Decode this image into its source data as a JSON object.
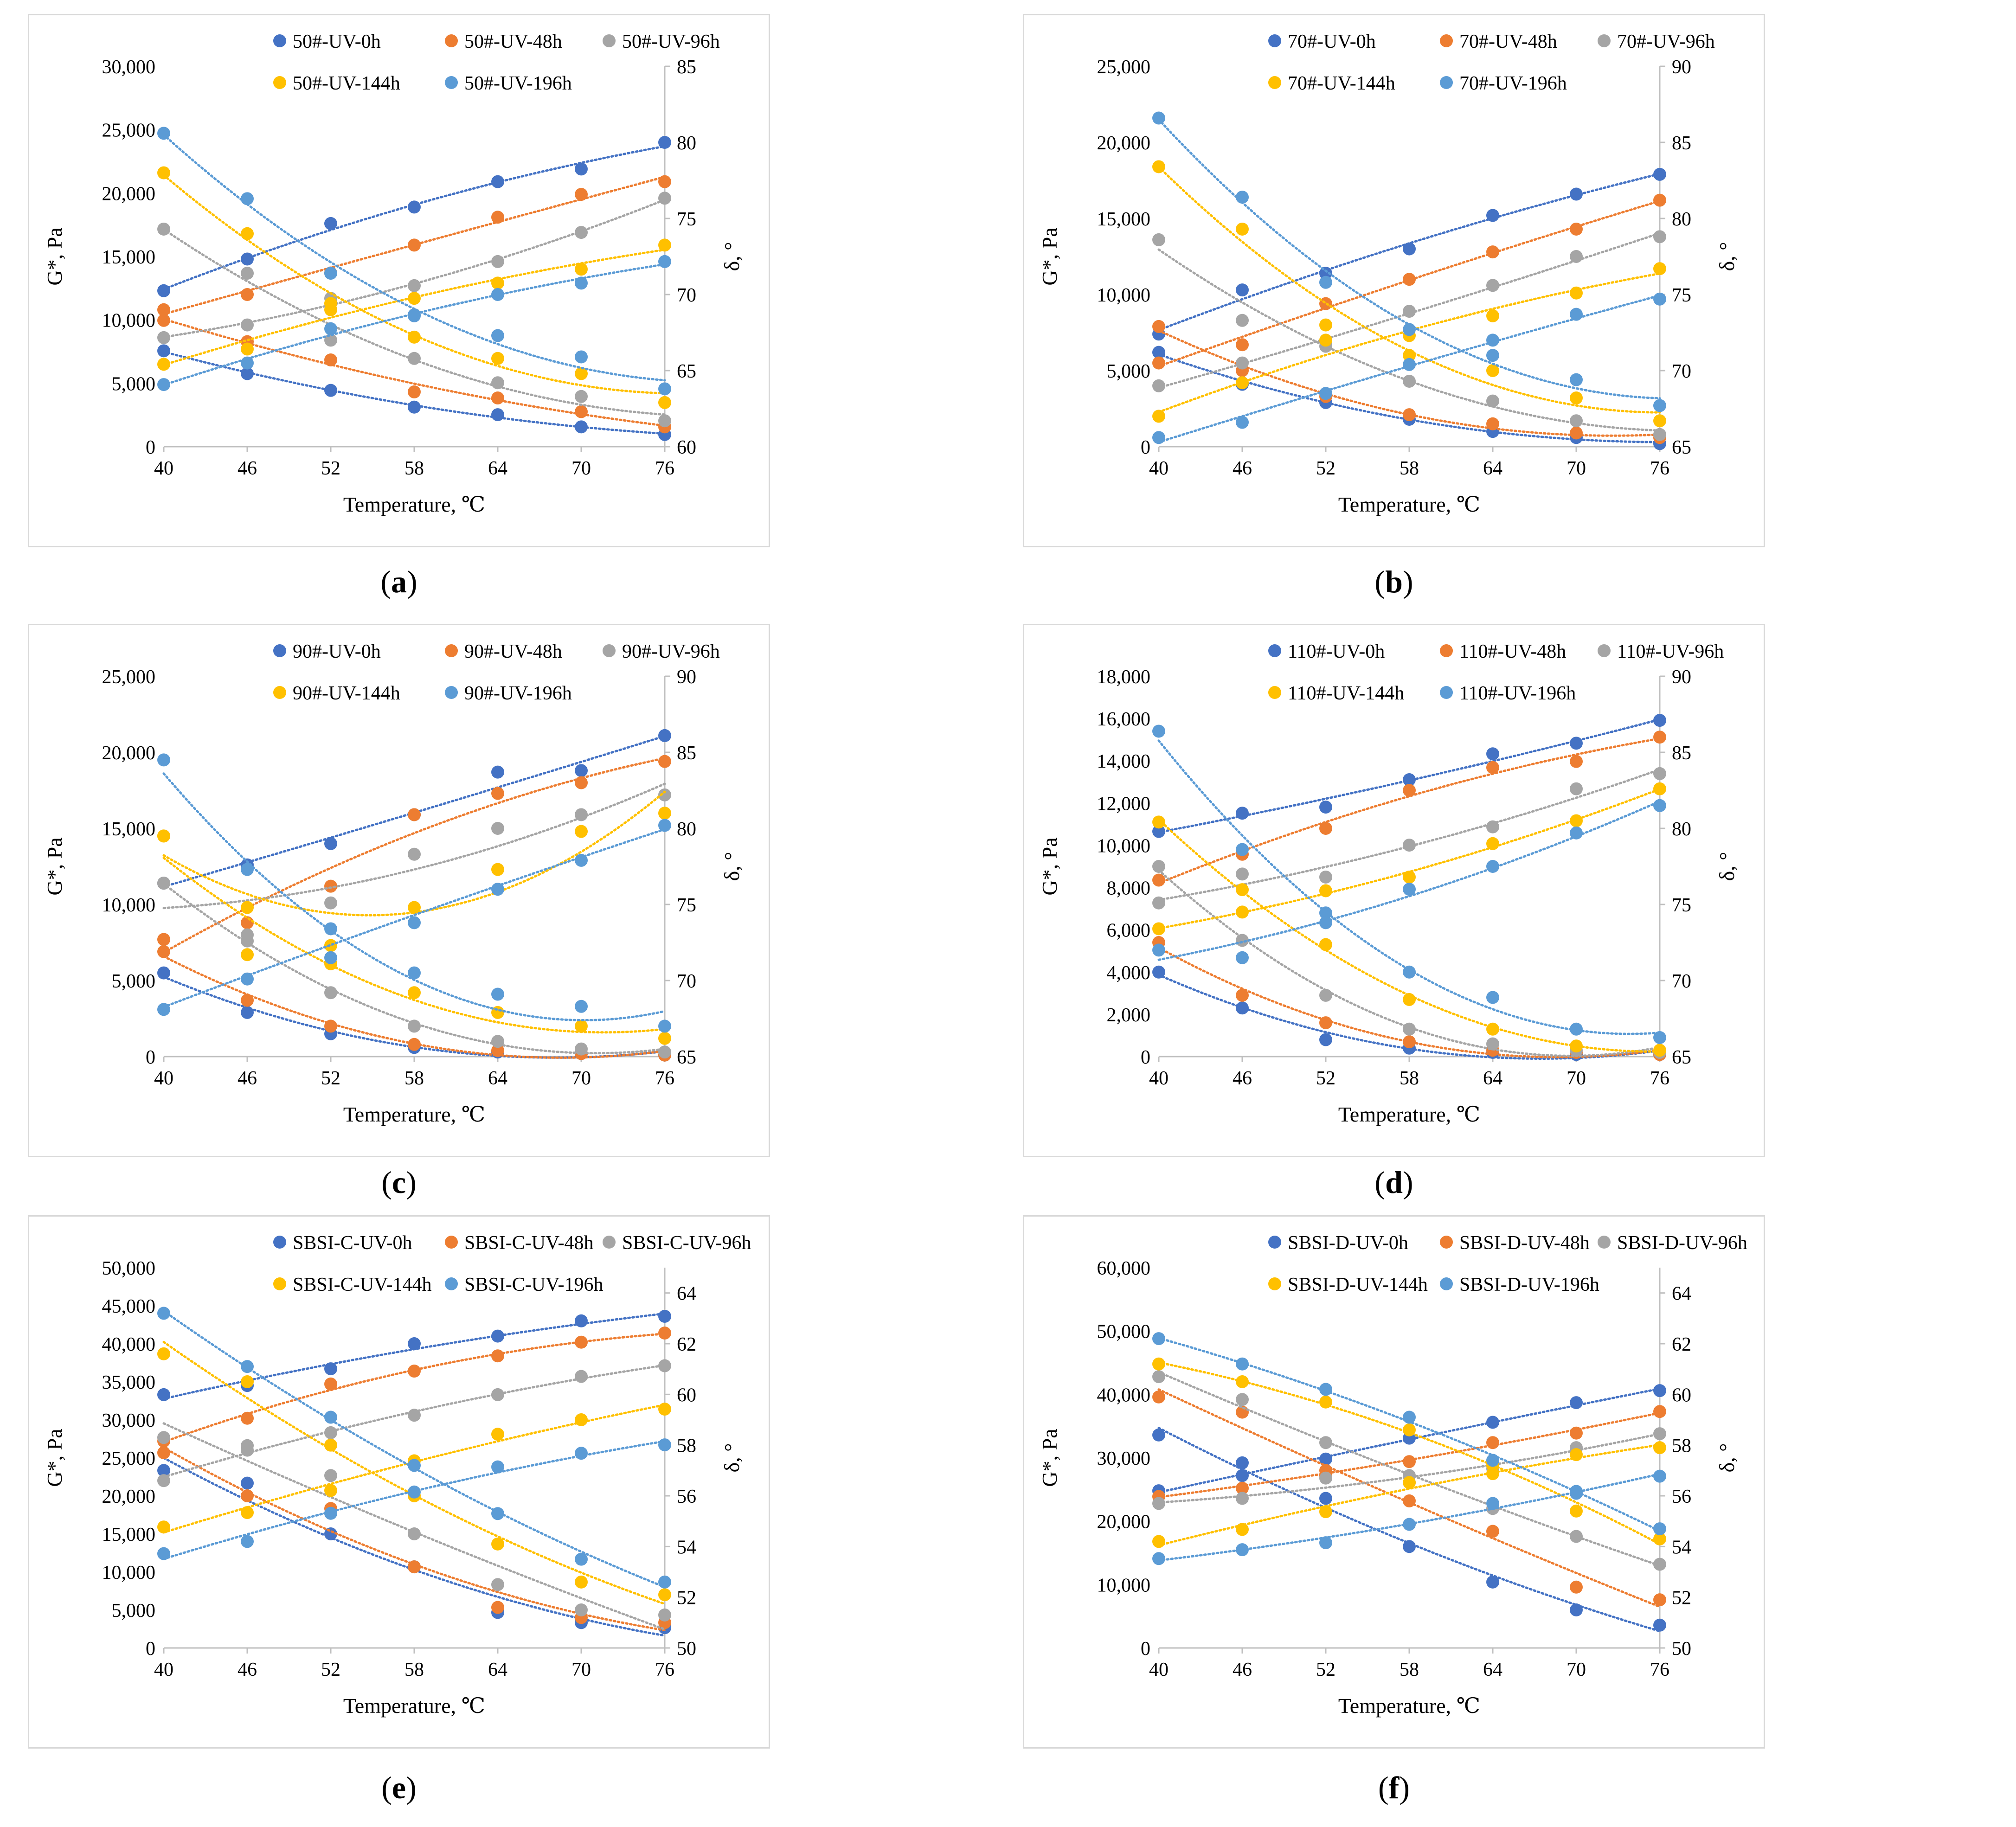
{
  "colors": {
    "UV-0h": "#4472c4",
    "UV-48h": "#ed7d31",
    "UV-96h": "#a5a5a5",
    "UV-144h": "#ffc000",
    "UV-196h": "#5b9bd5"
  },
  "chart_data": [
    {
      "id": "a",
      "type": "scatter",
      "label": "a",
      "x": [
        40,
        46,
        52,
        58,
        64,
        70,
        76
      ],
      "xlabel": "Temperature, ℃",
      "ylabel": "G*, Pa",
      "y2label": "δ, °",
      "ylim": [
        0,
        30000
      ],
      "yticks": [
        0,
        5000,
        10000,
        15000,
        20000,
        25000,
        30000
      ],
      "ytick_labels": [
        "0",
        "5,000",
        "10,000",
        "15,000",
        "20,000",
        "25,000",
        "30,000"
      ],
      "y2lim": [
        60,
        85
      ],
      "y2ticks": [
        60,
        65,
        70,
        75,
        80,
        85
      ],
      "y2tick_labels": [
        "60",
        "65",
        "70",
        "75",
        "80",
        "85"
      ],
      "legend": [
        "50#-UV-0h",
        "50#-UV-48h",
        "50#-UV-96h",
        "50#-UV-144h",
        "50#-UV-196h"
      ],
      "series": [
        {
          "name": "50#-UV-0h",
          "color": "#4472c4",
          "G": [
            12300,
            14800,
            17600,
            18900,
            20900,
            21900,
            24000
          ],
          "delta": [
            66.3,
            64.8,
            63.7,
            62.6,
            62.1,
            61.3,
            60.8
          ]
        },
        {
          "name": "50#-UV-48h",
          "color": "#ed7d31",
          "G": [
            10800,
            12000,
            13700,
            15900,
            18100,
            19900,
            20900
          ],
          "delta": [
            68.3,
            66.9,
            65.7,
            63.6,
            63.2,
            62.3,
            61.3
          ]
        },
        {
          "name": "50#-UV-96h",
          "color": "#a5a5a5",
          "G": [
            8600,
            9600,
            11700,
            12700,
            14600,
            16900,
            19600
          ],
          "delta": [
            74.3,
            71.4,
            67.0,
            65.8,
            64.2,
            63.3,
            61.7
          ]
        },
        {
          "name": "50#-UV-144h",
          "color": "#ffc000",
          "G": [
            6500,
            7700,
            11300,
            11700,
            12900,
            14000,
            15900
          ],
          "delta": [
            78.0,
            74.0,
            69.0,
            67.2,
            65.8,
            64.8,
            62.9
          ]
        },
        {
          "name": "50#-UV-196h",
          "color": "#5b9bd5",
          "G": [
            4900,
            6600,
            9300,
            10400,
            12000,
            12900,
            14600
          ],
          "delta": [
            80.6,
            76.3,
            71.4,
            68.6,
            67.3,
            65.9,
            63.8
          ]
        }
      ]
    },
    {
      "id": "b",
      "type": "scatter",
      "label": "b",
      "x": [
        40,
        46,
        52,
        58,
        64,
        70,
        76
      ],
      "xlabel": "Temperature, ℃",
      "ylabel": "G*, Pa",
      "y2label": "δ, °",
      "ylim": [
        0,
        25000
      ],
      "yticks": [
        0,
        5000,
        10000,
        15000,
        20000,
        25000
      ],
      "ytick_labels": [
        "0",
        "5,000",
        "10,000",
        "15,000",
        "20,000",
        "25,000"
      ],
      "y2lim": [
        65,
        90
      ],
      "y2ticks": [
        65,
        70,
        75,
        80,
        85,
        90
      ],
      "y2tick_labels": [
        "65",
        "70",
        "75",
        "80",
        "85",
        "90"
      ],
      "legend": [
        "70#-UV-0h",
        "70#-UV-48h",
        "70#-UV-96h",
        "70#-UV-144h",
        "70#-UV-196h"
      ],
      "series": [
        {
          "name": "70#-UV-0h",
          "color": "#4472c4",
          "G": [
            7400,
            10300,
            11400,
            13000,
            15200,
            16600,
            17900
          ],
          "delta": [
            71.2,
            69.1,
            67.9,
            66.8,
            66.0,
            65.6,
            65.2
          ]
        },
        {
          "name": "70#-UV-48h",
          "color": "#ed7d31",
          "G": [
            5500,
            6700,
            9400,
            11000,
            12800,
            14300,
            16200
          ],
          "delta": [
            72.9,
            70.0,
            68.3,
            67.1,
            66.5,
            65.9,
            65.6
          ]
        },
        {
          "name": "70#-UV-96h",
          "color": "#a5a5a5",
          "G": [
            4000,
            5500,
            6600,
            8900,
            10600,
            12500,
            13800
          ],
          "delta": [
            78.6,
            73.3,
            71.9,
            69.3,
            68.0,
            66.7,
            65.8
          ]
        },
        {
          "name": "70#-UV-144h",
          "color": "#ffc000",
          "G": [
            2000,
            4200,
            7000,
            7300,
            8600,
            10100,
            11700
          ],
          "delta": [
            83.4,
            79.3,
            73.0,
            71.0,
            70.0,
            68.2,
            66.7
          ]
        },
        {
          "name": "70#-UV-196h",
          "color": "#5b9bd5",
          "G": [
            600,
            1600,
            3500,
            5400,
            7000,
            8700,
            9700
          ],
          "delta": [
            86.6,
            81.4,
            75.8,
            72.7,
            71.0,
            69.4,
            67.7
          ]
        }
      ]
    },
    {
      "id": "c",
      "type": "scatter",
      "label": "c",
      "x": [
        40,
        46,
        52,
        58,
        64,
        70,
        76
      ],
      "xlabel": "Temperature, ℃",
      "ylabel": "G*, Pa",
      "y2label": "δ, °",
      "ylim": [
        0,
        25000
      ],
      "yticks": [
        0,
        5000,
        10000,
        15000,
        20000,
        25000
      ],
      "ytick_labels": [
        "0",
        "5,000",
        "10,000",
        "15,000",
        "20,000",
        "25,000"
      ],
      "y2lim": [
        65,
        90
      ],
      "y2ticks": [
        65,
        70,
        75,
        80,
        85,
        90
      ],
      "y2tick_labels": [
        "65",
        "70",
        "75",
        "80",
        "85",
        "90"
      ],
      "legend": [
        "90#-UV-0h",
        "90#-UV-48h",
        "90#-UV-96h",
        "90#-UV-144h",
        "90#-UV-196h"
      ],
      "series": [
        {
          "name": "90#-UV-0h",
          "color": "#4472c4",
          "G": [
            5500,
            2900,
            1500,
            600,
            300,
            200,
            100
          ],
          "delta": [
            76.4,
            77.6,
            79.0,
            80.9,
            83.7,
            83.8,
            86.1
          ]
        },
        {
          "name": "90#-UV-48h",
          "color": "#ed7d31",
          "G": [
            6900,
            3700,
            2000,
            800,
            400,
            200,
            100
          ],
          "delta": [
            72.7,
            73.8,
            76.2,
            80.9,
            82.3,
            83.0,
            84.4
          ]
        },
        {
          "name": "90#-UV-96h",
          "color": "#a5a5a5",
          "G": [
            11400,
            7600,
            4200,
            2000,
            1000,
            500,
            300
          ],
          "delta": [
            76.4,
            73.0,
            75.1,
            78.3,
            80.0,
            80.9,
            82.2
          ]
        },
        {
          "name": "90#-UV-144h",
          "color": "#ffc000",
          "G": [
            14500,
            6700,
            6100,
            4200,
            2900,
            2000,
            1200
          ],
          "delta": [
            79.5,
            74.8,
            72.3,
            74.8,
            77.3,
            79.8,
            81.0
          ]
        },
        {
          "name": "90#-UV-196h",
          "color": "#5b9bd5",
          "G": [
            19500,
            12300,
            6500,
            5500,
            4100,
            3300,
            2000
          ],
          "delta": [
            68.1,
            70.1,
            73.4,
            73.8,
            76.0,
            77.9,
            80.2
          ]
        }
      ]
    },
    {
      "id": "d",
      "type": "scatter",
      "label": "d",
      "x": [
        40,
        46,
        52,
        58,
        64,
        70,
        76
      ],
      "xlabel": "Temperature, ℃",
      "ylabel": "G*, Pa",
      "y2label": "δ, °",
      "ylim": [
        0,
        18000
      ],
      "yticks": [
        0,
        2000,
        4000,
        6000,
        8000,
        10000,
        12000,
        14000,
        16000,
        18000
      ],
      "ytick_labels": [
        "0",
        "2,000",
        "4,000",
        "6,000",
        "8,000",
        "10,000",
        "12,000",
        "14,000",
        "16,000",
        "18,000"
      ],
      "y2lim": [
        65,
        90
      ],
      "y2ticks": [
        65,
        70,
        75,
        80,
        85,
        90
      ],
      "y2tick_labels": [
        "65",
        "70",
        "75",
        "80",
        "85",
        "90"
      ],
      "legend": [
        "110#-UV-0h",
        "110#-UV-48h",
        "110#-UV-96h",
        "110#-UV-144h",
        "110#-UV-196h"
      ],
      "series": [
        {
          "name": "110#-UV-0h",
          "color": "#4472c4",
          "G": [
            4000,
            2300,
            800,
            400,
            200,
            100,
            100
          ],
          "delta": [
            79.8,
            81.0,
            81.4,
            83.2,
            84.9,
            85.6,
            87.1
          ]
        },
        {
          "name": "110#-UV-48h",
          "color": "#ed7d31",
          "G": [
            5400,
            2900,
            1600,
            700,
            300,
            200,
            100
          ],
          "delta": [
            76.6,
            78.3,
            80.0,
            82.5,
            84.0,
            84.4,
            86.0
          ]
        },
        {
          "name": "110#-UV-96h",
          "color": "#a5a5a5",
          "G": [
            9000,
            5500,
            2900,
            1300,
            600,
            300,
            200
          ],
          "delta": [
            75.1,
            77.0,
            76.8,
            78.9,
            80.1,
            82.6,
            83.6
          ]
        },
        {
          "name": "110#-UV-144h",
          "color": "#ffc000",
          "G": [
            11100,
            7900,
            5300,
            2700,
            1300,
            500,
            300
          ],
          "delta": [
            73.4,
            74.5,
            75.9,
            76.8,
            79.0,
            80.5,
            82.6
          ]
        },
        {
          "name": "110#-UV-196h",
          "color": "#5b9bd5",
          "G": [
            15400,
            9800,
            6800,
            4000,
            2800,
            1300,
            900
          ],
          "delta": [
            72.0,
            71.5,
            73.8,
            76.0,
            77.5,
            79.7,
            81.5
          ]
        }
      ]
    },
    {
      "id": "e",
      "type": "scatter",
      "label": "e",
      "x": [
        40,
        46,
        52,
        58,
        64,
        70,
        76
      ],
      "xlabel": "Temperature, ℃",
      "ylabel": "G*, Pa",
      "y2label": "δ, °",
      "ylim": [
        0,
        50000
      ],
      "yticks": [
        0,
        5000,
        10000,
        15000,
        20000,
        25000,
        30000,
        35000,
        40000,
        45000,
        50000
      ],
      "ytick_labels": [
        "0",
        "5,000",
        "10,000",
        "15,000",
        "20,000",
        "25,000",
        "30,000",
        "35,000",
        "40,000",
        "45,000",
        "50,000"
      ],
      "y2lim": [
        50,
        65
      ],
      "y2ticks": [
        50,
        52,
        54,
        56,
        58,
        60,
        62,
        64
      ],
      "y2tick_labels": [
        "50",
        "52",
        "54",
        "56",
        "58",
        "60",
        "62",
        "64"
      ],
      "legend": [
        "SBSI-C-UV-0h",
        "SBSI-C-UV-48h",
        "SBSI-C-UV-96h",
        "SBSI-C-UV-144h",
        "SBSI-C-UV-196h"
      ],
      "series": [
        {
          "name": "SBSI-C-UV-0h",
          "color": "#4472c4",
          "G": [
            33300,
            34500,
            36700,
            40000,
            41000,
            43000,
            43600
          ],
          "delta": [
            57.0,
            56.5,
            54.5,
            53.2,
            51.4,
            51.0,
            50.8
          ]
        },
        {
          "name": "SBSI-C-UV-48h",
          "color": "#ed7d31",
          "G": [
            27200,
            30200,
            34700,
            36400,
            38400,
            40200,
            41400
          ],
          "delta": [
            57.7,
            56.0,
            55.5,
            53.2,
            51.6,
            51.2,
            51.0
          ]
        },
        {
          "name": "SBSI-C-UV-96h",
          "color": "#a5a5a5",
          "G": [
            22000,
            26600,
            28300,
            30600,
            33300,
            35700,
            37100
          ],
          "delta": [
            58.3,
            57.8,
            56.8,
            54.5,
            52.5,
            51.5,
            51.3
          ]
        },
        {
          "name": "SBSI-C-UV-144h",
          "color": "#ffc000",
          "G": [
            15900,
            17800,
            20700,
            24600,
            28100,
            30000,
            31400
          ],
          "delta": [
            61.6,
            60.5,
            58.0,
            56.0,
            54.1,
            52.6,
            52.1
          ]
        },
        {
          "name": "SBSI-C-UV-196h",
          "color": "#5b9bd5",
          "G": [
            12400,
            14000,
            17700,
            20500,
            23800,
            25600,
            26700
          ],
          "delta": [
            63.2,
            61.1,
            59.1,
            57.2,
            55.3,
            53.5,
            52.6
          ]
        }
      ]
    },
    {
      "id": "f",
      "type": "scatter",
      "label": "f",
      "x": [
        40,
        46,
        52,
        58,
        64,
        70,
        76
      ],
      "xlabel": "Temperature, ℃",
      "ylabel": "G*, Pa",
      "y2label": "δ, °",
      "ylim": [
        0,
        60000
      ],
      "yticks": [
        0,
        10000,
        20000,
        30000,
        40000,
        50000,
        60000
      ],
      "ytick_labels": [
        "0",
        "10,000",
        "20,000",
        "30,000",
        "40,000",
        "50,000",
        "60,000"
      ],
      "y2lim": [
        50,
        65
      ],
      "y2ticks": [
        50,
        52,
        54,
        56,
        58,
        60,
        62,
        64
      ],
      "y2tick_labels": [
        "50",
        "52",
        "54",
        "56",
        "58",
        "60",
        "62",
        "64"
      ],
      "legend": [
        "SBSI-D-UV-0h",
        "SBSI-D-UV-48h",
        "SBSI-D-UV-96h",
        "SBSI-D-UV-144h",
        "SBSI-D-UV-196h"
      ],
      "series": [
        {
          "name": "SBSI-D-UV-0h",
          "color": "#4472c4",
          "G": [
            24800,
            27200,
            29800,
            33100,
            35600,
            38700,
            40600
          ],
          "delta": [
            58.4,
            57.3,
            55.9,
            54.0,
            52.6,
            51.5,
            50.9
          ]
        },
        {
          "name": "SBSI-D-UV-48h",
          "color": "#ed7d31",
          "G": [
            23900,
            25200,
            28000,
            29400,
            32400,
            33900,
            37300
          ],
          "delta": [
            59.9,
            59.3,
            56.8,
            55.8,
            54.6,
            52.4,
            51.9
          ]
        },
        {
          "name": "SBSI-D-UV-96h",
          "color": "#a5a5a5",
          "G": [
            22800,
            23600,
            26800,
            26100,
            28300,
            31600,
            33800
          ],
          "delta": [
            60.7,
            59.8,
            58.1,
            56.8,
            55.5,
            54.4,
            53.3
          ]
        },
        {
          "name": "SBSI-D-UV-144h",
          "color": "#ffc000",
          "G": [
            16800,
            18700,
            21500,
            26100,
            27500,
            30500,
            31600
          ],
          "delta": [
            61.2,
            60.5,
            59.7,
            58.6,
            57.2,
            55.4,
            54.3
          ]
        },
        {
          "name": "SBSI-D-UV-196h",
          "color": "#5b9bd5",
          "G": [
            14100,
            15500,
            16600,
            19500,
            22800,
            24700,
            27100
          ],
          "delta": [
            62.2,
            61.2,
            60.2,
            59.1,
            57.4,
            56.1,
            54.7
          ]
        }
      ]
    }
  ]
}
